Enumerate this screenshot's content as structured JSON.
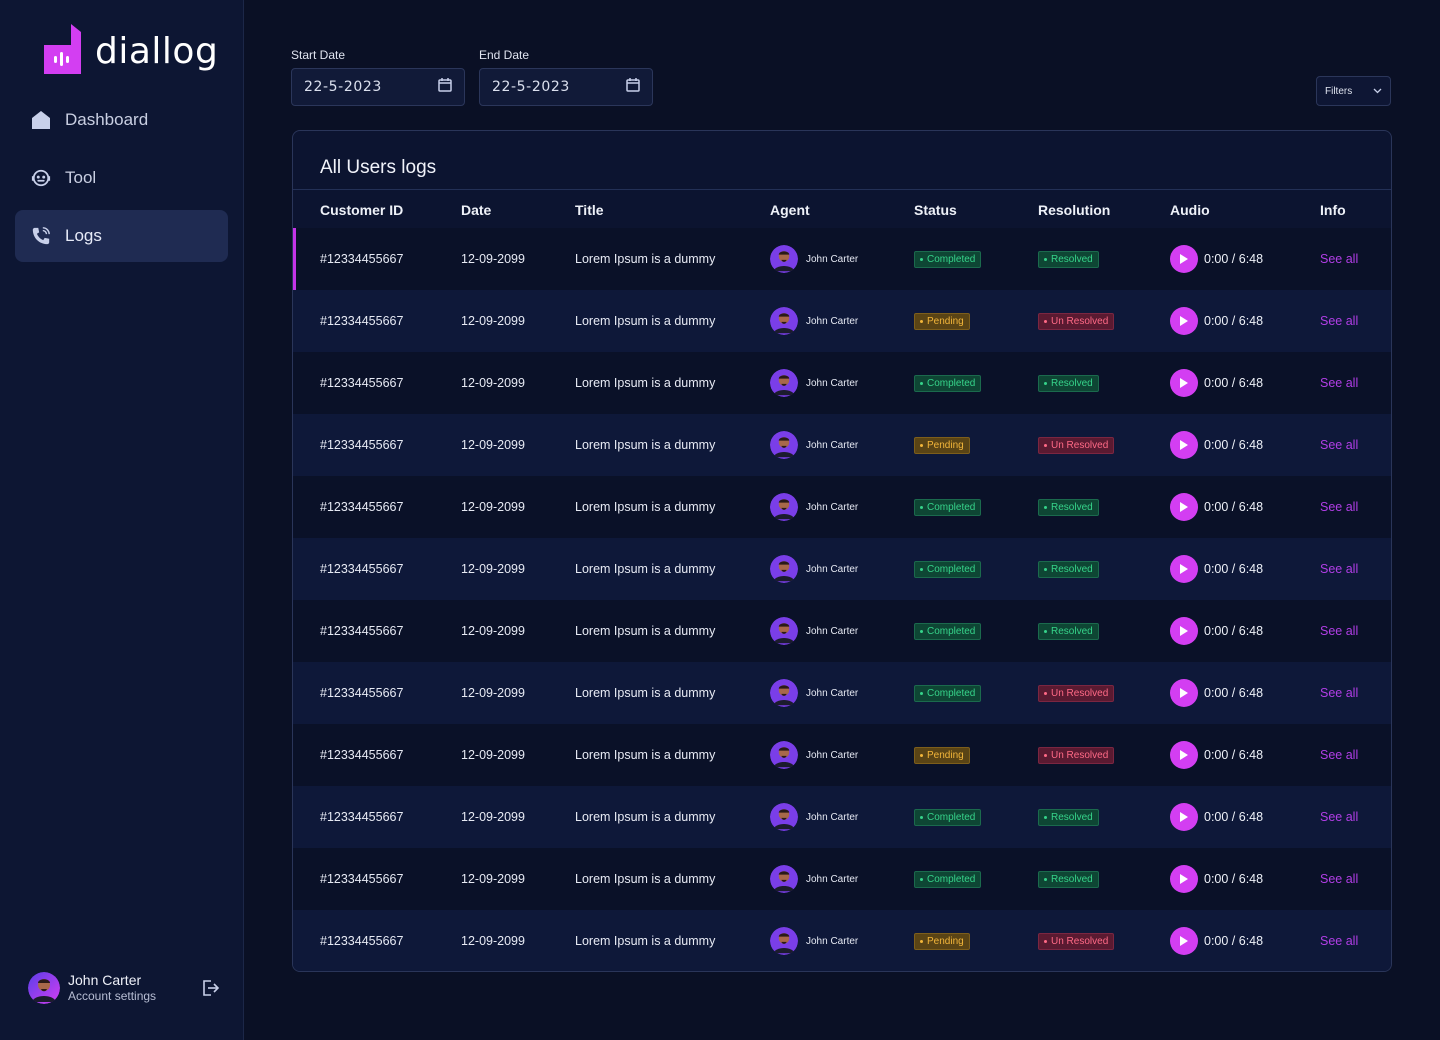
{
  "brand": {
    "name": "diallog",
    "accent": "#d33ef2"
  },
  "sidebar": {
    "items": [
      {
        "label": "Dashboard",
        "icon": "home-icon"
      },
      {
        "label": "Tool",
        "icon": "robot-icon"
      },
      {
        "label": "Logs",
        "icon": "phone-icon",
        "active": true
      }
    ],
    "user": {
      "name": "John Carter",
      "subtitle": "Account settings"
    }
  },
  "filters": {
    "start_label": "Start Date",
    "start_value": "22-5-2023",
    "end_label": "End Date",
    "end_value": "22-5-2023",
    "filters_label": "Filters"
  },
  "table": {
    "title": "All Users logs",
    "columns": [
      "Customer ID",
      "Date",
      "Title",
      "Agent",
      "Status",
      "Resolution",
      "Audio",
      "Info"
    ],
    "rows": [
      {
        "id": "#12334455667",
        "date": "12-09-2099",
        "title": "Lorem Ipsum is a dummy",
        "agent": "John Carter",
        "status": "Completed",
        "resolution": "Resolved",
        "audio": "0:00 / 6:48",
        "info": "See all"
      },
      {
        "id": "#12334455667",
        "date": "12-09-2099",
        "title": "Lorem Ipsum is a dummy",
        "agent": "John Carter",
        "status": "Pending",
        "resolution": "Un Resolved",
        "audio": "0:00 / 6:48",
        "info": "See all"
      },
      {
        "id": "#12334455667",
        "date": "12-09-2099",
        "title": "Lorem Ipsum is a dummy",
        "agent": "John Carter",
        "status": "Completed",
        "resolution": "Resolved",
        "audio": "0:00 / 6:48",
        "info": "See all"
      },
      {
        "id": "#12334455667",
        "date": "12-09-2099",
        "title": "Lorem Ipsum is a dummy",
        "agent": "John Carter",
        "status": "Pending",
        "resolution": "Un Resolved",
        "audio": "0:00 / 6:48",
        "info": "See all"
      },
      {
        "id": "#12334455667",
        "date": "12-09-2099",
        "title": "Lorem Ipsum is a dummy",
        "agent": "John Carter",
        "status": "Completed",
        "resolution": "Resolved",
        "audio": "0:00 / 6:48",
        "info": "See all"
      },
      {
        "id": "#12334455667",
        "date": "12-09-2099",
        "title": "Lorem Ipsum is a dummy",
        "agent": "John Carter",
        "status": "Completed",
        "resolution": "Resolved",
        "audio": "0:00 / 6:48",
        "info": "See all"
      },
      {
        "id": "#12334455667",
        "date": "12-09-2099",
        "title": "Lorem Ipsum is a dummy",
        "agent": "John Carter",
        "status": "Completed",
        "resolution": "Resolved",
        "audio": "0:00 / 6:48",
        "info": "See all"
      },
      {
        "id": "#12334455667",
        "date": "12-09-2099",
        "title": "Lorem Ipsum is a dummy",
        "agent": "John Carter",
        "status": "Completed",
        "resolution": "Un Resolved",
        "audio": "0:00 / 6:48",
        "info": "See all"
      },
      {
        "id": "#12334455667",
        "date": "12-09-2099",
        "title": "Lorem Ipsum is a dummy",
        "agent": "John Carter",
        "status": "Pending",
        "resolution": "Un Resolved",
        "audio": "0:00 / 6:48",
        "info": "See all"
      },
      {
        "id": "#12334455667",
        "date": "12-09-2099",
        "title": "Lorem Ipsum is a dummy",
        "agent": "John Carter",
        "status": "Completed",
        "resolution": "Resolved",
        "audio": "0:00 / 6:48",
        "info": "See all"
      },
      {
        "id": "#12334455667",
        "date": "12-09-2099",
        "title": "Lorem Ipsum is a dummy",
        "agent": "John Carter",
        "status": "Completed",
        "resolution": "Resolved",
        "audio": "0:00 / 6:48",
        "info": "See all"
      },
      {
        "id": "#12334455667",
        "date": "12-09-2099",
        "title": "Lorem Ipsum is a dummy",
        "agent": "John Carter",
        "status": "Pending",
        "resolution": "Un Resolved",
        "audio": "0:00 / 6:48",
        "info": "See all"
      }
    ]
  }
}
